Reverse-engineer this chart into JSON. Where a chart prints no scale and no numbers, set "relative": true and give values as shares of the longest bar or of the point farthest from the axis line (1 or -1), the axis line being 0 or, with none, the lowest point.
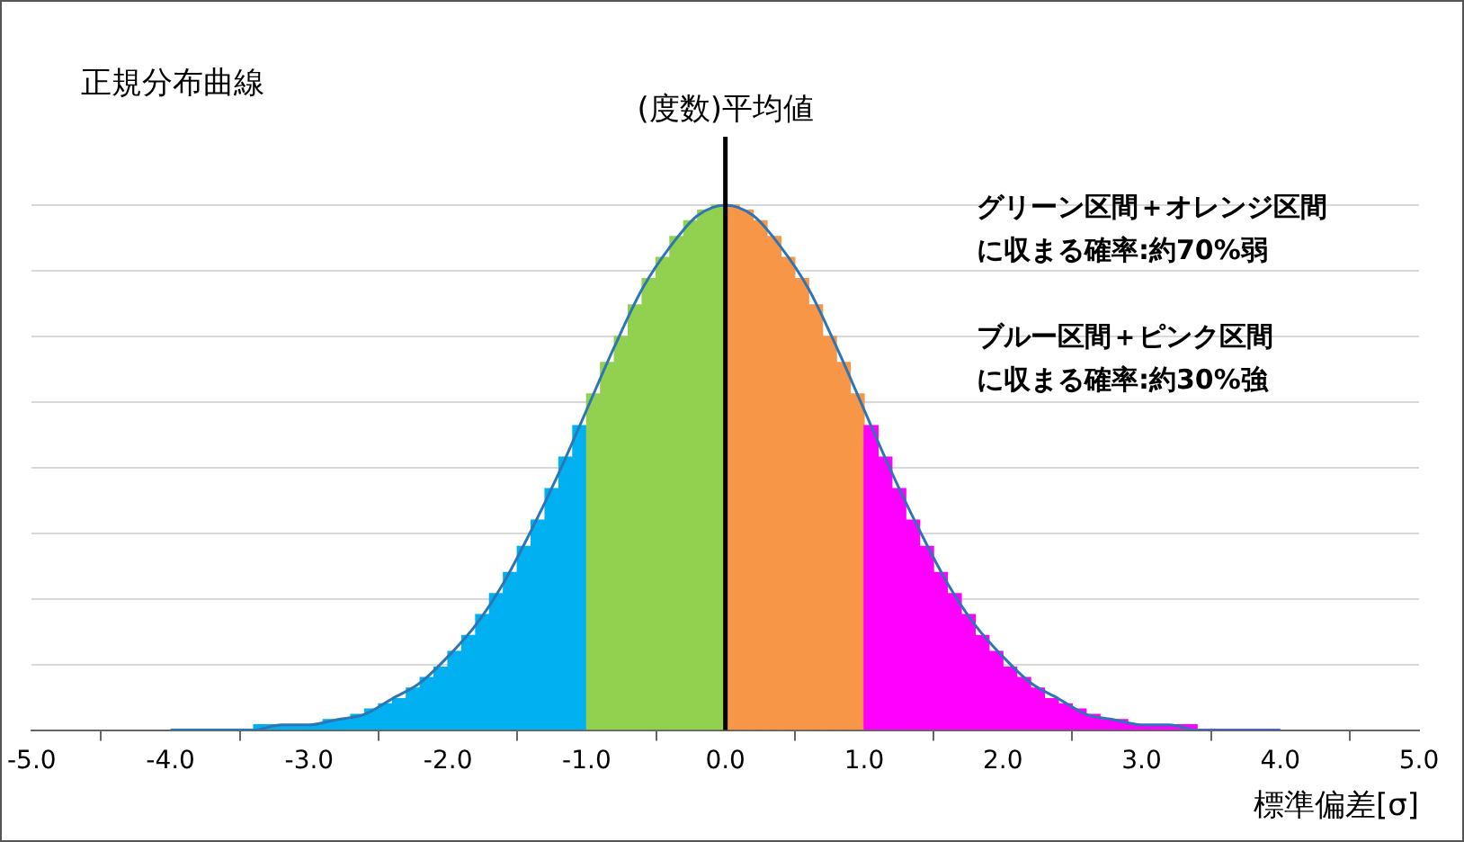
{
  "chart_data": {
    "type": "histogram",
    "title": "正規分布曲線",
    "xlabel": "標準偏差[σ]",
    "relative": true,
    "grid": "y",
    "legend": false,
    "xlim": [
      -5,
      5
    ],
    "xticks": [
      {
        "value": -5,
        "label": "-5.0"
      },
      {
        "value": -4,
        "label": "-4.0"
      },
      {
        "value": -3,
        "label": "-3.0"
      },
      {
        "value": -2,
        "label": "-2.0"
      },
      {
        "value": -1,
        "label": "-1.0"
      },
      {
        "value": 0,
        "label": "0.0"
      },
      {
        "value": 1,
        "label": "1.0"
      },
      {
        "value": 2,
        "label": "2.0"
      },
      {
        "value": 3,
        "label": "3.0"
      },
      {
        "value": 4,
        "label": "4.0"
      },
      {
        "value": 5,
        "label": "5.0"
      }
    ],
    "ref_lines": [
      {
        "axis": "x",
        "value": 0,
        "label": "(度数)平均値",
        "color": "#000000"
      }
    ],
    "annotations": [
      "グリーン区間＋オレンジ区間",
      "に収まる確率:約70%弱",
      "ブルー区間＋ピンク区間",
      "に収まる確率:約30%強"
    ],
    "series": [
      {
        "type": "histogram",
        "bins": [
          -4,
          -3.9,
          -3.8,
          -3.7,
          -3.6,
          -3.5,
          -3.4,
          -3.3,
          -3.2,
          -3.1,
          -3,
          -2.9,
          -2.8,
          -2.7,
          -2.6,
          -2.5,
          -2.4,
          -2.3,
          -2.2,
          -2.1,
          -2,
          -1.9,
          -1.8,
          -1.7,
          -1.6,
          -1.5,
          -1.4,
          -1.3,
          -1.2,
          -1.1,
          -1,
          -0.9,
          -0.8,
          -0.7,
          -0.6,
          -0.5,
          -0.4,
          -0.3,
          -0.2,
          -0.1,
          0,
          0.1,
          0.2,
          0.3,
          0.4,
          0.5,
          0.6,
          0.7,
          0.8,
          0.9,
          1,
          1.1,
          1.2,
          1.3,
          1.4,
          1.5,
          1.6,
          1.7,
          1.8,
          1.9,
          2,
          2.1,
          2.2,
          2.3,
          2.4,
          2.5,
          2.6,
          2.7,
          2.8,
          2.9,
          3,
          3.1,
          3.2,
          3.3,
          3.4,
          3.5,
          3.6,
          3.7,
          3.8,
          3.9,
          4
        ],
        "values": [
          0,
          0,
          0,
          0,
          0,
          0,
          0.01,
          0.01,
          0.01,
          0.01,
          0.01,
          0.02,
          0.02,
          0.03,
          0.04,
          0.05,
          0.06,
          0.08,
          0.1,
          0.12,
          0.15,
          0.18,
          0.22,
          0.26,
          0.3,
          0.35,
          0.4,
          0.46,
          0.52,
          0.58,
          0.64,
          0.7,
          0.75,
          0.81,
          0.86,
          0.9,
          0.94,
          0.97,
          0.99,
          1,
          1,
          0.99,
          0.97,
          0.94,
          0.9,
          0.86,
          0.81,
          0.75,
          0.7,
          0.64,
          0.58,
          0.52,
          0.46,
          0.4,
          0.35,
          0.3,
          0.26,
          0.22,
          0.18,
          0.15,
          0.12,
          0.1,
          0.08,
          0.06,
          0.05,
          0.04,
          0.03,
          0.02,
          0.02,
          0.01,
          0.01,
          0.01,
          0.01,
          0.01,
          0,
          0,
          0,
          0,
          0,
          0
        ],
        "colors": [
          "#00b0f0",
          "#00b0f0",
          "#00b0f0",
          "#00b0f0",
          "#00b0f0",
          "#00b0f0",
          "#00b0f0",
          "#00b0f0",
          "#00b0f0",
          "#00b0f0",
          "#00b0f0",
          "#00b0f0",
          "#00b0f0",
          "#00b0f0",
          "#00b0f0",
          "#00b0f0",
          "#00b0f0",
          "#00b0f0",
          "#00b0f0",
          "#00b0f0",
          "#00b0f0",
          "#00b0f0",
          "#00b0f0",
          "#00b0f0",
          "#00b0f0",
          "#00b0f0",
          "#00b0f0",
          "#00b0f0",
          "#00b0f0",
          "#00b0f0",
          "#92d050",
          "#92d050",
          "#92d050",
          "#92d050",
          "#92d050",
          "#92d050",
          "#92d050",
          "#92d050",
          "#92d050",
          "#92d050",
          "#f79646",
          "#f79646",
          "#f79646",
          "#f79646",
          "#f79646",
          "#f79646",
          "#f79646",
          "#f79646",
          "#f79646",
          "#f79646",
          "#ff00ff",
          "#ff00ff",
          "#ff00ff",
          "#ff00ff",
          "#ff00ff",
          "#ff00ff",
          "#ff00ff",
          "#ff00ff",
          "#ff00ff",
          "#ff00ff",
          "#ff00ff",
          "#ff00ff",
          "#ff00ff",
          "#ff00ff",
          "#ff00ff",
          "#ff00ff",
          "#ff00ff",
          "#ff00ff",
          "#ff00ff",
          "#ff00ff",
          "#ff00ff",
          "#ff00ff",
          "#ff00ff",
          "#ff00ff",
          "#ff00ff",
          "#ff00ff",
          "#ff00ff",
          "#ff00ff",
          "#ff00ff",
          "#ff00ff"
        ]
      },
      {
        "type": "line",
        "color": "#2e75b6",
        "x": [
          -4,
          -3.8,
          -3.6,
          -3.4,
          -3.2,
          -3,
          -2.8,
          -2.6,
          -2.4,
          -2.2,
          -2,
          -1.8,
          -1.6,
          -1.4,
          -1.2,
          -1,
          -0.8,
          -0.6,
          -0.4,
          -0.2,
          0,
          0.2,
          0.4,
          0.6,
          0.8,
          1,
          1.2,
          1.4,
          1.6,
          1.8,
          2,
          2.2,
          2.4,
          2.6,
          2.8,
          3,
          3.2,
          3.4,
          3.6,
          3.8,
          4
        ],
        "values": [
          0,
          0,
          0,
          0,
          0.01,
          0.01,
          0.02,
          0.03,
          0.06,
          0.09,
          0.14,
          0.2,
          0.28,
          0.38,
          0.49,
          0.61,
          0.73,
          0.84,
          0.92,
          0.98,
          1,
          0.98,
          0.92,
          0.84,
          0.73,
          0.61,
          0.49,
          0.38,
          0.28,
          0.2,
          0.14,
          0.09,
          0.06,
          0.03,
          0.02,
          0.01,
          0.01,
          0,
          0,
          0,
          0
        ]
      }
    ]
  }
}
